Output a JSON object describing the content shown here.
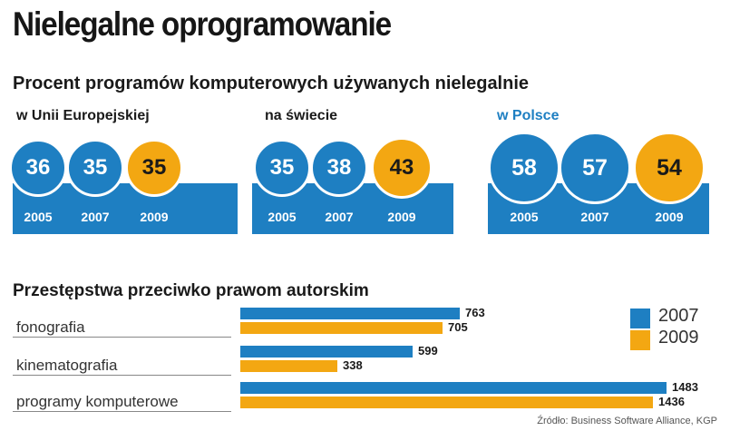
{
  "title": "Nielegalne oprogramowanie",
  "source": "Źródło: Business Software Alliance, KGP",
  "colors": {
    "blue": "#1e7fc2",
    "orange": "#f3a712"
  },
  "chart_data": [
    {
      "type": "bar",
      "title": "Procent programów komputerowych używanych nielegalnie",
      "categories": [
        "w Unii Europejskiej",
        "na świecie",
        "w Polsce"
      ],
      "x": [
        "2005",
        "2007",
        "2009"
      ],
      "series": [
        {
          "name": "w Unii Europejskiej",
          "values": [
            36,
            35,
            35
          ]
        },
        {
          "name": "na świecie",
          "values": [
            35,
            38,
            43
          ]
        },
        {
          "name": "w Polsce",
          "values": [
            58,
            57,
            54
          ]
        }
      ],
      "unit": "%"
    },
    {
      "type": "bar",
      "orientation": "horizontal",
      "title": "Przestępstwa przeciwko prawom autorskim",
      "categories": [
        "fonografia",
        "kinematografia",
        "programy komputerowe"
      ],
      "series": [
        {
          "name": "2007",
          "values": [
            763,
            599,
            1483
          ]
        },
        {
          "name": "2009",
          "values": [
            705,
            338,
            1436
          ]
        }
      ],
      "legend": "top-right",
      "xlim": [
        0,
        1483
      ]
    }
  ]
}
